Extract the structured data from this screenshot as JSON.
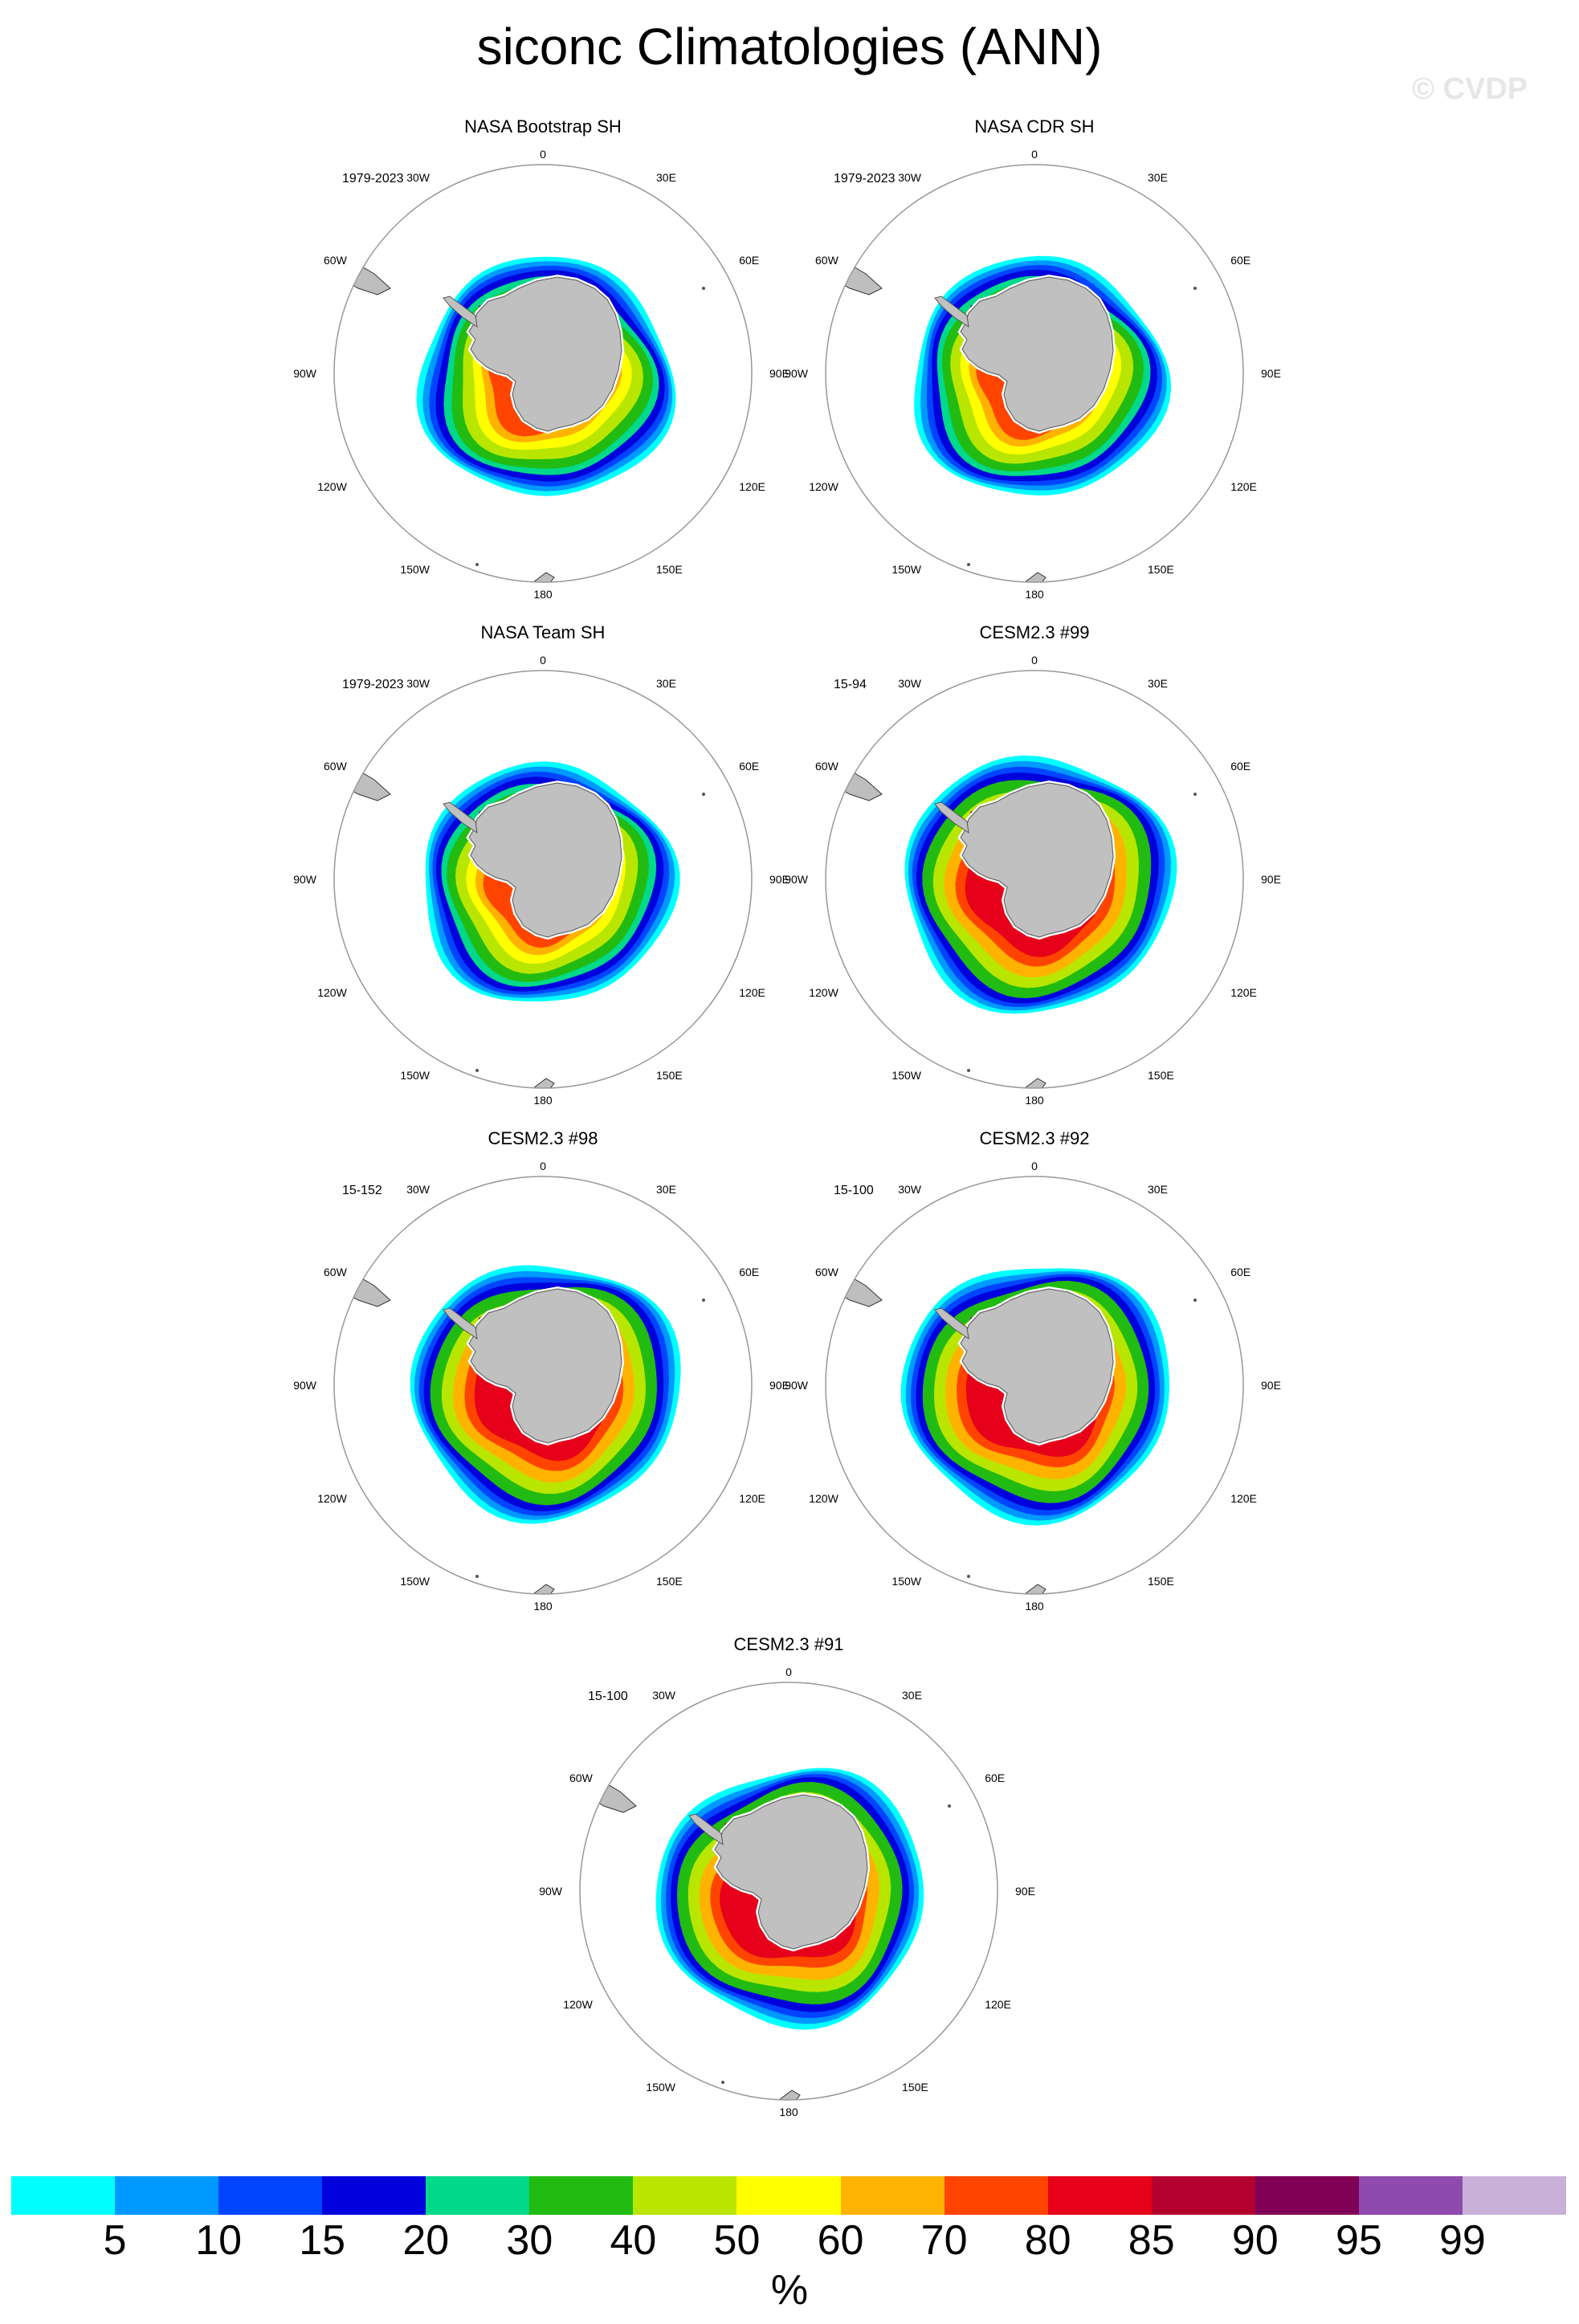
{
  "figure": {
    "title": "siconc Climatologies (ANN)",
    "watermark": "© CVDP"
  },
  "longitude_labels": [
    "0",
    "30E",
    "60E",
    "90E",
    "120E",
    "150E",
    "180",
    "150W",
    "120W",
    "90W",
    "60W",
    "30W"
  ],
  "panels": [
    {
      "title": "NASA Bootstrap SH",
      "years": "1979-2023",
      "ice_color_scale": "observational"
    },
    {
      "title": "NASA CDR SH",
      "years": "1979-2023",
      "ice_color_scale": "observational"
    },
    {
      "title": "NASA Team SH",
      "years": "1979-2023",
      "ice_color_scale": "observational"
    },
    {
      "title": "CESM2.3 #99",
      "years": "15-94",
      "ice_color_scale": "model"
    },
    {
      "title": "CESM2.3 #98",
      "years": "15-152",
      "ice_color_scale": "model"
    },
    {
      "title": "CESM2.3 #92",
      "years": "15-100",
      "ice_color_scale": "model"
    },
    {
      "title": "CESM2.3 #91",
      "years": "15-100",
      "ice_color_scale": "model"
    }
  ],
  "colorbar": {
    "colors": [
      "#00ffff",
      "#0099ff",
      "#0044ff",
      "#0000dd",
      "#00d989",
      "#22bb11",
      "#b9e600",
      "#ffff00",
      "#ffb300",
      "#ff4400",
      "#e6001a",
      "#b3002e",
      "#800055",
      "#8e4aad",
      "#c8b0d9"
    ],
    "labels": [
      "5",
      "10",
      "15",
      "20",
      "30",
      "40",
      "50",
      "60",
      "70",
      "80",
      "85",
      "90",
      "95",
      "99"
    ],
    "units": "%"
  },
  "colors": {
    "land": "#bebebe",
    "antarctica": "#c0c0c0",
    "circle_border": "#999999"
  }
}
